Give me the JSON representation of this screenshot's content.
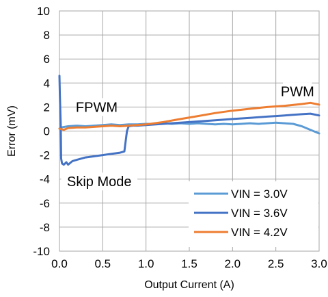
{
  "chart_data": {
    "type": "line",
    "xlabel": "Output Current (A)",
    "ylabel": "Error (mV)",
    "xlim": [
      0,
      3
    ],
    "ylim": [
      -10,
      10
    ],
    "x_ticks": [
      0,
      0.5,
      1,
      1.5,
      2,
      2.5,
      3
    ],
    "x_tick_labels": [
      "0.0",
      "0.5",
      "1.0",
      "1.5",
      "2.0",
      "2.5",
      "3.0"
    ],
    "y_ticks": [
      -10,
      -8,
      -6,
      -4,
      -2,
      0,
      2,
      4,
      6,
      8,
      10
    ],
    "y_tick_labels": [
      "-10",
      "-8",
      "-6",
      "-4",
      "-2",
      "0",
      "2",
      "4",
      "6",
      "8",
      "10"
    ],
    "grid": true,
    "legend_position": "bottom-right",
    "annotations": [
      {
        "text": "FPWM",
        "x": 0.43,
        "y": 2.0
      },
      {
        "text": "PWM",
        "x": 2.75,
        "y": 3.3
      },
      {
        "text": "Skip Mode",
        "x": 0.46,
        "y": -4.2
      }
    ],
    "series": [
      {
        "name": "VIN = 3.0V",
        "color": "#5B9BD5",
        "x": [
          0,
          0.02,
          0.1,
          0.2,
          0.3,
          0.4,
          0.5,
          0.6,
          0.7,
          0.8,
          0.9,
          1.0,
          1.1,
          1.2,
          1.3,
          1.4,
          1.5,
          1.6,
          1.7,
          1.8,
          1.9,
          2.0,
          2.1,
          2.2,
          2.3,
          2.4,
          2.5,
          2.6,
          2.7,
          2.8,
          2.9,
          3.0
        ],
        "y": [
          0.2,
          0.3,
          0.4,
          0.45,
          0.4,
          0.45,
          0.5,
          0.55,
          0.5,
          0.55,
          0.55,
          0.6,
          0.6,
          0.65,
          0.6,
          0.65,
          0.6,
          0.65,
          0.6,
          0.55,
          0.6,
          0.55,
          0.6,
          0.65,
          0.6,
          0.65,
          0.7,
          0.65,
          0.6,
          0.4,
          0.1,
          -0.2
        ]
      },
      {
        "name": "VIN = 3.6V",
        "color": "#4472C4",
        "x": [
          0,
          0.005,
          0.015,
          0.02,
          0.03,
          0.05,
          0.08,
          0.1,
          0.15,
          0.2,
          0.3,
          0.4,
          0.5,
          0.6,
          0.7,
          0.75,
          0.78,
          0.8,
          0.85,
          0.9,
          1.0,
          1.2,
          1.4,
          1.6,
          1.8,
          2.0,
          2.2,
          2.4,
          2.5,
          2.6,
          2.7,
          2.8,
          2.9,
          3.0
        ],
        "y": [
          4.6,
          3.0,
          0.5,
          -2.3,
          -2.7,
          -2.8,
          -2.6,
          -2.8,
          -2.5,
          -2.4,
          -2.2,
          -2.1,
          -2.0,
          -1.9,
          -1.8,
          -1.7,
          0.0,
          0.4,
          0.45,
          0.45,
          0.5,
          0.6,
          0.7,
          0.8,
          0.9,
          1.0,
          1.1,
          1.2,
          1.25,
          1.3,
          1.35,
          1.4,
          1.45,
          1.3
        ]
      },
      {
        "name": "VIN = 4.2V",
        "color": "#ED7D31",
        "x": [
          0,
          0.05,
          0.1,
          0.2,
          0.3,
          0.4,
          0.5,
          0.6,
          0.7,
          0.8,
          0.9,
          1.0,
          1.2,
          1.4,
          1.6,
          1.8,
          2.0,
          2.2,
          2.4,
          2.6,
          2.8,
          2.9,
          3.0
        ],
        "y": [
          0.2,
          0.1,
          0.25,
          0.3,
          0.3,
          0.35,
          0.4,
          0.45,
          0.4,
          0.45,
          0.5,
          0.55,
          0.75,
          1.0,
          1.25,
          1.5,
          1.7,
          1.85,
          2.0,
          2.1,
          2.25,
          2.35,
          2.2
        ]
      }
    ]
  }
}
